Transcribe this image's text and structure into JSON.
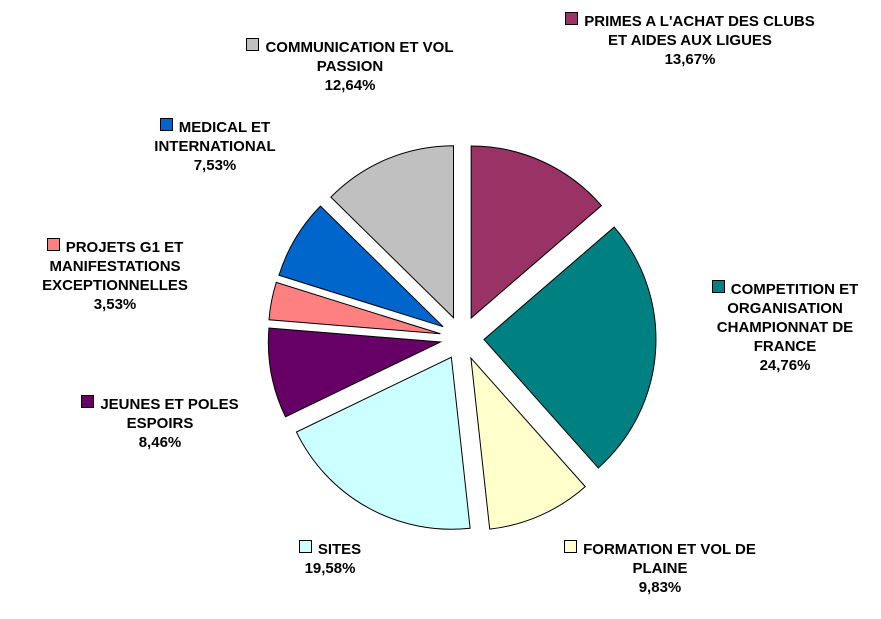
{
  "chart_data": {
    "type": "pie",
    "categories": [
      "PRIMES A L'ACHAT DES CLUBS ET AIDES AUX LIGUES",
      "COMPETITION ET ORGANISATION CHAMPIONNAT DE FRANCE",
      "FORMATION ET VOL DE PLAINE",
      "SITES",
      "JEUNES ET POLES ESPOIRS",
      "PROJETS G1 ET MANIFESTATIONS EXCEPTIONNELLES",
      "MEDICAL ET INTERNATIONAL",
      "COMMUNICATION ET VOL PASSION"
    ],
    "values": [
      13.67,
      24.76,
      9.83,
      19.58,
      8.46,
      3.53,
      7.53,
      12.64
    ],
    "value_labels": [
      "13,67%",
      "24,76%",
      "9,83%",
      "19,58%",
      "8,46%",
      "3,53%",
      "7,53%",
      "12,64%"
    ],
    "colors": [
      "#993366",
      "#008080",
      "#ffffcc",
      "#ccffff",
      "#660066",
      "#ff8080",
      "#0066cc",
      "#c0c0c0"
    ]
  }
}
